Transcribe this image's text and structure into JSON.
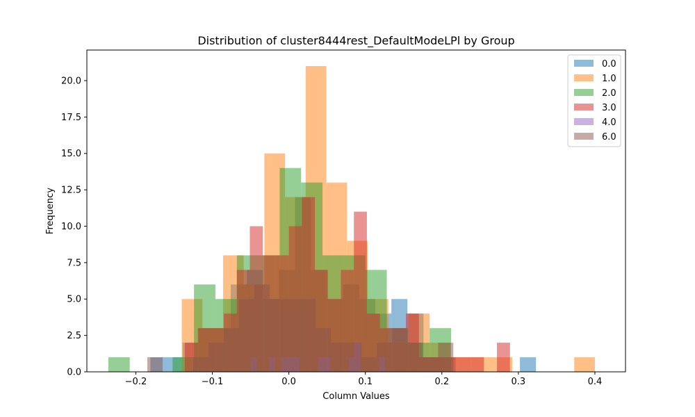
{
  "chart_data": {
    "type": "bar",
    "subtype": "overlaid-histogram",
    "title": "Distribution of cluster8444rest_DefaultModeLPl by Group",
    "xlabel": "Column Values",
    "ylabel": "Frequency",
    "xlim": [
      -0.264,
      0.44
    ],
    "ylim": [
      0,
      22.1
    ],
    "xticks": [
      -0.2,
      -0.1,
      0.0,
      0.1,
      0.2,
      0.3,
      0.4
    ],
    "xtick_labels": [
      "−0.2",
      "−0.1",
      "0.0",
      "0.1",
      "0.2",
      "0.3",
      "0.4"
    ],
    "yticks": [
      0,
      2.5,
      5,
      7.5,
      10,
      12.5,
      15,
      17.5,
      20
    ],
    "ytick_labels": [
      "0.0",
      "2.5",
      "5.0",
      "7.5",
      "10.0",
      "12.5",
      "15.0",
      "17.5",
      "20.0"
    ],
    "grid": false,
    "legend_position": "upper right",
    "bar_opacity": 0.5,
    "series": [
      {
        "name": "0.0",
        "color": "#1f77b4",
        "bins": [
          [
            -0.181,
            -0.16,
            1
          ],
          [
            -0.16,
            -0.139,
            1
          ],
          [
            -0.139,
            -0.118,
            2
          ],
          [
            -0.118,
            -0.097,
            3
          ],
          [
            -0.097,
            -0.076,
            3
          ],
          [
            -0.076,
            -0.055,
            6
          ],
          [
            -0.055,
            -0.034,
            7
          ],
          [
            -0.034,
            -0.013,
            5
          ],
          [
            -0.013,
            0.008,
            7
          ],
          [
            0.008,
            0.029,
            12
          ],
          [
            0.029,
            0.05,
            7
          ],
          [
            0.05,
            0.071,
            5
          ],
          [
            0.071,
            0.092,
            6
          ],
          [
            0.092,
            0.113,
            5
          ],
          [
            0.113,
            0.134,
            4
          ],
          [
            0.134,
            0.155,
            5
          ],
          [
            0.155,
            0.176,
            4
          ],
          [
            0.176,
            0.197,
            1
          ],
          [
            0.197,
            0.218,
            1
          ],
          [
            0.302,
            0.323,
            1
          ]
        ]
      },
      {
        "name": "1.0",
        "color": "#ff7f0e",
        "bins": [
          [
            -0.14,
            -0.113,
            5
          ],
          [
            -0.113,
            -0.086,
            3
          ],
          [
            -0.086,
            -0.059,
            8
          ],
          [
            -0.059,
            -0.032,
            6
          ],
          [
            -0.032,
            -0.005,
            15
          ],
          [
            -0.005,
            0.022,
            12
          ],
          [
            0.022,
            0.049,
            21
          ],
          [
            0.049,
            0.076,
            13
          ],
          [
            0.076,
            0.103,
            9
          ],
          [
            0.103,
            0.13,
            5
          ],
          [
            0.13,
            0.157,
            2
          ],
          [
            0.157,
            0.184,
            4
          ],
          [
            0.184,
            0.211,
            2
          ],
          [
            0.211,
            0.238,
            1
          ],
          [
            0.238,
            0.265,
            1
          ],
          [
            0.265,
            0.292,
            1
          ],
          [
            0.292,
            0.319,
            0
          ],
          [
            0.319,
            0.346,
            0
          ],
          [
            0.346,
            0.373,
            0
          ],
          [
            0.373,
            0.4,
            1
          ]
        ]
      },
      {
        "name": "2.0",
        "color": "#2ca02c",
        "bins": [
          [
            -0.236,
            -0.208,
            1
          ],
          [
            -0.208,
            -0.18,
            0
          ],
          [
            -0.18,
            -0.152,
            0
          ],
          [
            -0.152,
            -0.124,
            1
          ],
          [
            -0.124,
            -0.096,
            6
          ],
          [
            -0.096,
            -0.068,
            5
          ],
          [
            -0.068,
            -0.04,
            8
          ],
          [
            -0.04,
            -0.012,
            8
          ],
          [
            -0.012,
            0.016,
            14
          ],
          [
            0.016,
            0.044,
            13
          ],
          [
            0.044,
            0.072,
            8
          ],
          [
            0.072,
            0.1,
            8
          ],
          [
            0.1,
            0.128,
            7
          ],
          [
            0.128,
            0.156,
            3
          ],
          [
            0.156,
            0.184,
            2
          ],
          [
            0.184,
            0.212,
            3
          ]
        ]
      },
      {
        "name": "3.0",
        "color": "#d62728",
        "bins": [
          [
            -0.136,
            -0.119,
            2
          ],
          [
            -0.119,
            -0.102,
            3
          ],
          [
            -0.102,
            -0.085,
            3
          ],
          [
            -0.085,
            -0.068,
            4
          ],
          [
            -0.068,
            -0.051,
            7
          ],
          [
            -0.051,
            -0.034,
            10
          ],
          [
            -0.034,
            -0.017,
            8
          ],
          [
            -0.017,
            0.0,
            8
          ],
          [
            0.0,
            0.017,
            10
          ],
          [
            0.017,
            0.034,
            12
          ],
          [
            0.034,
            0.051,
            7
          ],
          [
            0.051,
            0.068,
            5
          ],
          [
            0.068,
            0.085,
            7
          ],
          [
            0.085,
            0.102,
            11
          ],
          [
            0.102,
            0.119,
            4
          ],
          [
            0.119,
            0.136,
            3
          ],
          [
            0.136,
            0.153,
            3
          ],
          [
            0.153,
            0.17,
            4
          ],
          [
            0.17,
            0.187,
            1
          ],
          [
            0.187,
            0.204,
            1
          ],
          [
            0.204,
            0.221,
            1
          ],
          [
            0.221,
            0.238,
            1
          ],
          [
            0.238,
            0.255,
            1
          ],
          [
            0.255,
            0.272,
            0
          ],
          [
            0.272,
            0.289,
            2
          ],
          [
            0.289,
            0.306,
            0
          ]
        ]
      },
      {
        "name": "4.0",
        "color": "#9467bd",
        "bins": [
          [
            -0.05,
            -0.042,
            1
          ],
          [
            -0.042,
            -0.034,
            0
          ],
          [
            -0.034,
            -0.026,
            0
          ],
          [
            -0.026,
            -0.018,
            1
          ],
          [
            -0.018,
            -0.01,
            0
          ],
          [
            -0.01,
            -0.002,
            1
          ],
          [
            -0.002,
            0.006,
            1
          ],
          [
            0.006,
            0.014,
            1
          ],
          [
            0.014,
            0.022,
            0
          ],
          [
            0.022,
            0.03,
            0
          ],
          [
            0.03,
            0.038,
            0
          ],
          [
            0.038,
            0.046,
            1
          ],
          [
            0.046,
            0.054,
            1
          ],
          [
            0.054,
            0.062,
            0
          ],
          [
            0.062,
            0.07,
            0
          ],
          [
            0.07,
            0.078,
            0
          ],
          [
            0.078,
            0.086,
            1
          ],
          [
            0.086,
            0.094,
            2
          ],
          [
            0.094,
            0.102,
            0
          ],
          [
            0.102,
            0.11,
            0
          ],
          [
            0.11,
            0.118,
            0
          ],
          [
            0.118,
            0.126,
            1
          ]
        ]
      },
      {
        "name": "6.0",
        "color": "#8c564b",
        "bins": [
          [
            -0.185,
            -0.165,
            1
          ],
          [
            -0.125,
            -0.105,
            1
          ],
          [
            -0.105,
            -0.085,
            2
          ],
          [
            -0.085,
            -0.065,
            3
          ],
          [
            -0.065,
            -0.045,
            5
          ],
          [
            -0.045,
            -0.025,
            6
          ],
          [
            -0.025,
            -0.005,
            5
          ],
          [
            -0.005,
            0.015,
            5
          ],
          [
            0.015,
            0.035,
            5
          ],
          [
            0.035,
            0.055,
            3
          ],
          [
            0.055,
            0.075,
            2
          ],
          [
            0.075,
            0.095,
            2
          ],
          [
            0.095,
            0.115,
            1
          ],
          [
            0.115,
            0.135,
            2
          ],
          [
            0.135,
            0.155,
            3
          ],
          [
            0.155,
            0.175,
            2
          ],
          [
            0.175,
            0.195,
            1
          ],
          [
            0.195,
            0.215,
            2
          ]
        ]
      }
    ]
  }
}
